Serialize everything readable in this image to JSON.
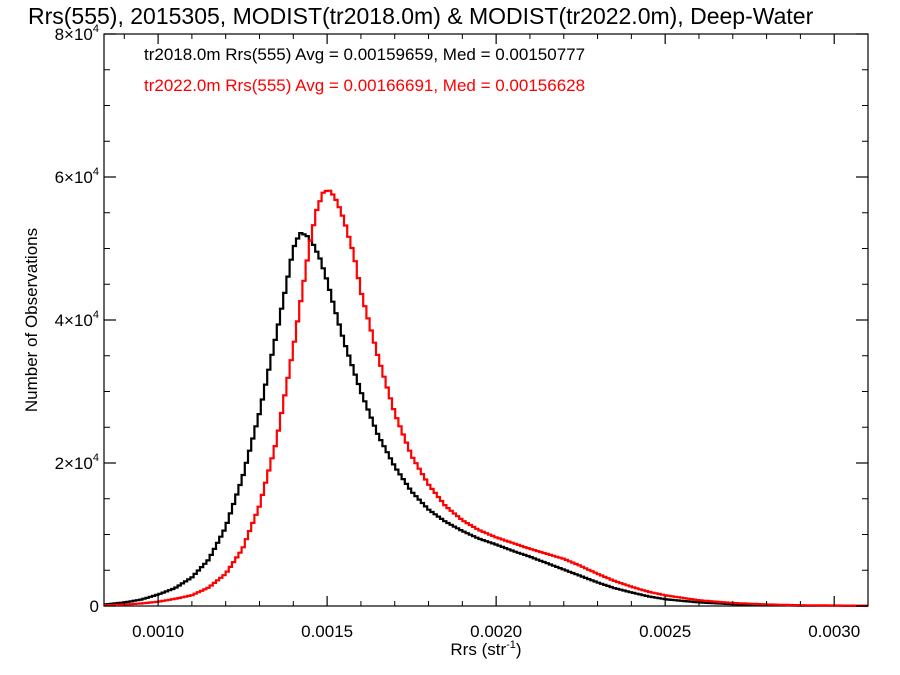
{
  "chart_data": {
    "type": "line",
    "title": "Rrs(555), 2015305, MODIST(tr2018.0m) & MODIST(tr2022.0m), Deep-Water",
    "xlabel": "Rrs (str",
    "xlabel_sup": "-1",
    "xlabel_tail": ")",
    "ylabel": "Number of Observations",
    "xlim": [
      0.00084,
      0.0031
    ],
    "ylim": [
      0,
      80000
    ],
    "grid": false,
    "x_ticks": [
      {
        "value": 0.001,
        "label": "0.0010"
      },
      {
        "value": 0.0015,
        "label": "0.0015"
      },
      {
        "value": 0.002,
        "label": "0.0020"
      },
      {
        "value": 0.0025,
        "label": "0.0025"
      },
      {
        "value": 0.003,
        "label": "0.0030"
      }
    ],
    "y_ticks": [
      {
        "value": 0,
        "mant": "0",
        "exp": ""
      },
      {
        "value": 20000,
        "mant": "2×10",
        "exp": "4"
      },
      {
        "value": 40000,
        "mant": "4×10",
        "exp": "4"
      },
      {
        "value": 60000,
        "mant": "6×10",
        "exp": "4"
      },
      {
        "value": 80000,
        "mant": "8×10",
        "exp": "4"
      }
    ],
    "series": [
      {
        "name": "tr2018.0m",
        "legend": "tr2018.0m Rrs(555) Avg = 0.00159659, Med = 0.00150777",
        "color": "#000000",
        "points": [
          [
            0.00084,
            200
          ],
          [
            0.0009,
            500
          ],
          [
            0.00095,
            900
          ],
          [
            0.001,
            1600
          ],
          [
            0.00105,
            2500
          ],
          [
            0.0011,
            4000
          ],
          [
            0.00115,
            6500
          ],
          [
            0.0012,
            11000
          ],
          [
            0.00125,
            18000
          ],
          [
            0.0013,
            27000
          ],
          [
            0.00135,
            38000
          ],
          [
            0.00138,
            45000
          ],
          [
            0.0014,
            50000
          ],
          [
            0.00142,
            52200
          ],
          [
            0.00144,
            51800
          ],
          [
            0.00146,
            50500
          ],
          [
            0.00148,
            48500
          ],
          [
            0.0015,
            45500
          ],
          [
            0.00152,
            42000
          ],
          [
            0.00155,
            37000
          ],
          [
            0.0016,
            30000
          ],
          [
            0.00165,
            24000
          ],
          [
            0.0017,
            19500
          ],
          [
            0.00175,
            16000
          ],
          [
            0.0018,
            13500
          ],
          [
            0.00185,
            11800
          ],
          [
            0.0019,
            10500
          ],
          [
            0.00195,
            9400
          ],
          [
            0.002,
            8600
          ],
          [
            0.00205,
            7700
          ],
          [
            0.0021,
            6900
          ],
          [
            0.00215,
            6000
          ],
          [
            0.0022,
            5100
          ],
          [
            0.00225,
            4200
          ],
          [
            0.0023,
            3300
          ],
          [
            0.00235,
            2500
          ],
          [
            0.0024,
            1900
          ],
          [
            0.00245,
            1350
          ],
          [
            0.0025,
            950
          ],
          [
            0.0026,
            500
          ],
          [
            0.0027,
            250
          ],
          [
            0.0028,
            120
          ],
          [
            0.0029,
            60
          ],
          [
            0.0031,
            20
          ]
        ]
      },
      {
        "name": "tr2022.0m",
        "legend": "tr2022.0m Rrs(555) Avg = 0.00166691, Med = 0.00156628",
        "color": "#ff0000",
        "points": [
          [
            0.00084,
            100
          ],
          [
            0.0009,
            200
          ],
          [
            0.00095,
            350
          ],
          [
            0.001,
            600
          ],
          [
            0.00105,
            1000
          ],
          [
            0.0011,
            1500
          ],
          [
            0.00115,
            2600
          ],
          [
            0.0012,
            4500
          ],
          [
            0.00125,
            8000
          ],
          [
            0.0013,
            14000
          ],
          [
            0.00135,
            23000
          ],
          [
            0.0014,
            36000
          ],
          [
            0.00143,
            45000
          ],
          [
            0.00145,
            51000
          ],
          [
            0.00147,
            55500
          ],
          [
            0.00149,
            58000
          ],
          [
            0.00151,
            58100
          ],
          [
            0.00153,
            56500
          ],
          [
            0.00155,
            54000
          ],
          [
            0.00158,
            49000
          ],
          [
            0.0016,
            44000
          ],
          [
            0.00165,
            35000
          ],
          [
            0.0017,
            27000
          ],
          [
            0.00175,
            21000
          ],
          [
            0.0018,
            17000
          ],
          [
            0.00185,
            14000
          ],
          [
            0.0019,
            12000
          ],
          [
            0.00195,
            10600
          ],
          [
            0.002,
            9600
          ],
          [
            0.00205,
            8800
          ],
          [
            0.0021,
            8000
          ],
          [
            0.00215,
            7300
          ],
          [
            0.0022,
            6600
          ],
          [
            0.00225,
            5600
          ],
          [
            0.0023,
            4500
          ],
          [
            0.00235,
            3500
          ],
          [
            0.0024,
            2700
          ],
          [
            0.00245,
            2000
          ],
          [
            0.0025,
            1500
          ],
          [
            0.0026,
            800
          ],
          [
            0.0027,
            420
          ],
          [
            0.0028,
            220
          ],
          [
            0.0029,
            110
          ],
          [
            0.0031,
            30
          ]
        ]
      }
    ]
  }
}
